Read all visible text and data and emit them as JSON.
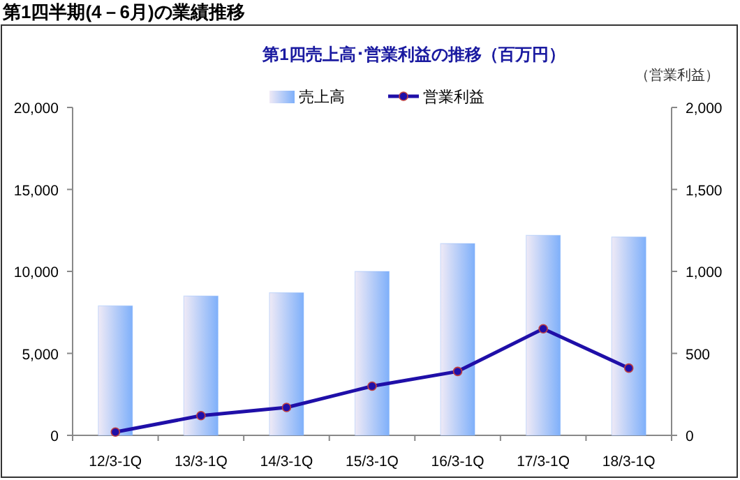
{
  "chart_data": {
    "type": "bar",
    "title": "第1四半期(4－6月)の業績推移",
    "subtitle": "第1四売上高･営業利益の推移（百万円）",
    "y2label": "（営業利益）",
    "categories": [
      "12/3-1Q",
      "13/3-1Q",
      "14/3-1Q",
      "15/3-1Q",
      "16/3-1Q",
      "17/3-1Q",
      "18/3-1Q"
    ],
    "series": [
      {
        "name": "売上高",
        "color": "#7fb0fa",
        "values": [
          7900,
          8500,
          8700,
          10000,
          11700,
          12200,
          12100
        ]
      },
      {
        "name": "営業利益",
        "type": "line",
        "axis": "y2",
        "marker": "circle",
        "color": "#1f0fa8",
        "values": [
          20,
          120,
          170,
          300,
          390,
          650,
          410
        ]
      }
    ],
    "ylim": [
      0,
      20000
    ],
    "yticks": [
      0,
      {
        "value": 5000,
        "label": "5,000"
      },
      {
        "value": 10000,
        "label": "10,000"
      },
      {
        "value": 15000,
        "label": "15,000"
      },
      {
        "value": 20000,
        "label": "20,000"
      }
    ],
    "y2lim": [
      0,
      2000
    ],
    "y2ticks": [
      0,
      500,
      {
        "value": 1000,
        "label": "1,000"
      },
      {
        "value": 1500,
        "label": "1,500"
      },
      {
        "value": 2000,
        "label": "2,000"
      }
    ],
    "legend": "top"
  }
}
